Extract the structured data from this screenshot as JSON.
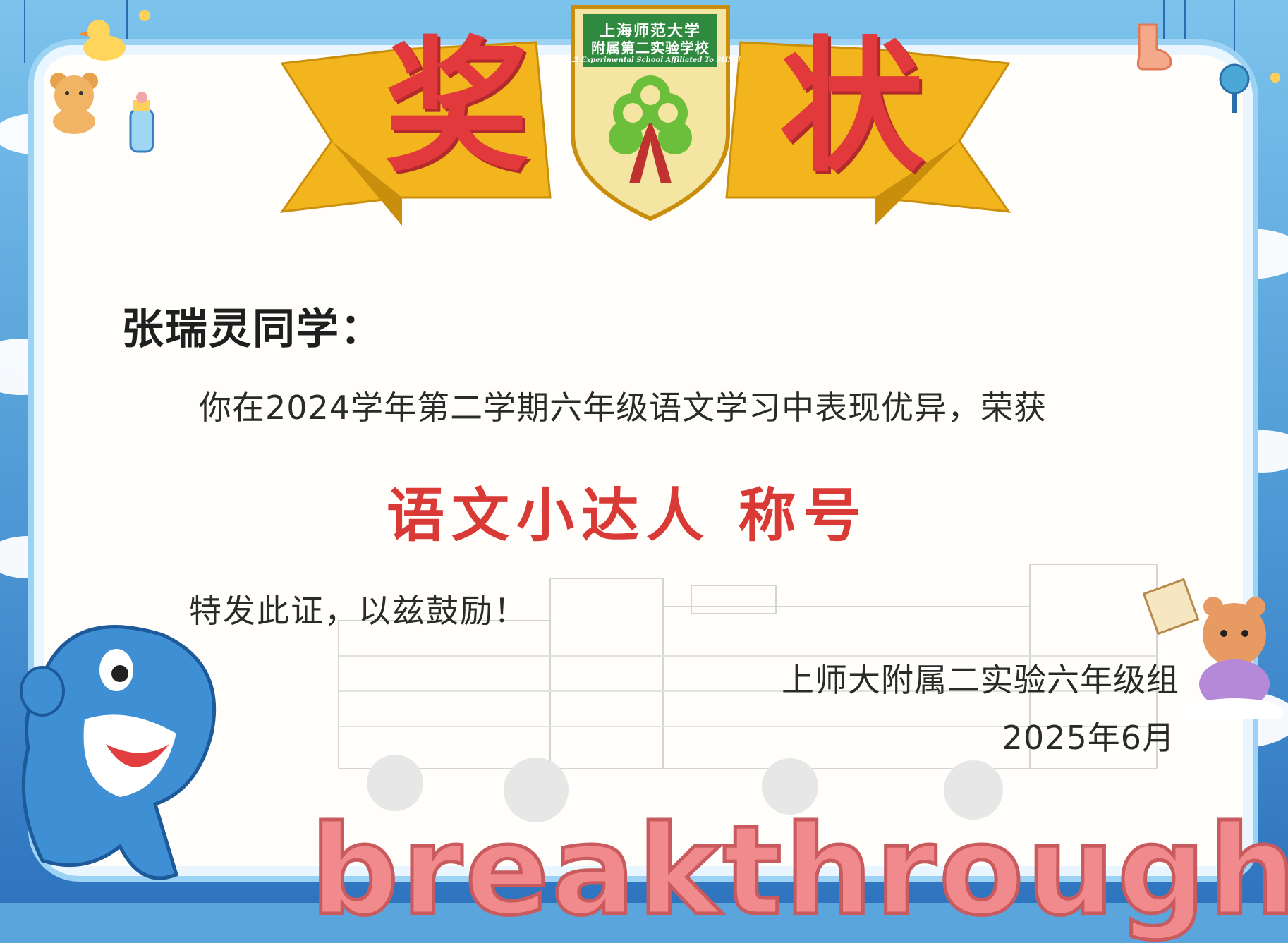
{
  "certificate": {
    "title_chars": [
      "奖",
      "状"
    ],
    "school_seal": {
      "line1": "上海师范大学",
      "line2": "附属第二实验学校",
      "line3": "No.2 Experimental School Affiliated To SHNU"
    },
    "recipient": "张瑞灵同学：",
    "body": "你在2024学年第二学期六年级语文学习中表现优异，荣获",
    "award": "语文小达人 称号",
    "closing": "特发此证，以兹鼓励！",
    "issuer": "上师大附属二实验六年级组",
    "date": "2025年6月",
    "decorative_word": "breakthrough"
  },
  "colors": {
    "title_red": "#e2393d",
    "ribbon_gold": "#f2b51d",
    "seal_green": "#2f8a3f",
    "frame_blue": "#4f9ad6"
  },
  "icons": [
    "teddy-bear-icon",
    "rubber-duck-icon",
    "baby-bottle-icon",
    "sock-icon",
    "rattle-icon",
    "dolphin-mascot-icon",
    "cat-mascot-icon",
    "school-seal-icon"
  ]
}
